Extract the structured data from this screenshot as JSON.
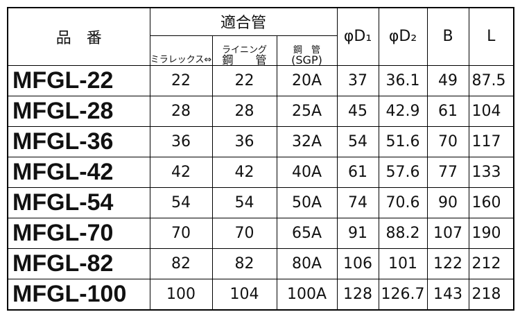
{
  "header": {
    "part_no": "品　番",
    "fit_pipe": "適合管",
    "sub": [
      {
        "lines": [
          "ミラレックス⇔"
        ]
      },
      {
        "lines": [
          "ライニング",
          "鋼　　管"
        ]
      },
      {
        "lines": [
          "鋼　管",
          "(SGP)"
        ]
      }
    ],
    "dims": [
      "φD₁",
      "φD₂",
      "B",
      "L"
    ]
  },
  "table": {
    "rows": [
      [
        "MFGL-22",
        "22",
        "22",
        "20A",
        "37",
        "36.1",
        "49",
        "87.5"
      ],
      [
        "MFGL-28",
        "28",
        "28",
        "25A",
        "45",
        "42.9",
        "61",
        "104"
      ],
      [
        "MFGL-36",
        "36",
        "36",
        "32A",
        "54",
        "51.6",
        "70",
        "117"
      ],
      [
        "MFGL-42",
        "42",
        "42",
        "40A",
        "61",
        "57.6",
        "77",
        "133"
      ],
      [
        "MFGL-54",
        "54",
        "54",
        "50A",
        "74",
        "70.6",
        "90",
        "160"
      ],
      [
        "MFGL-70",
        "70",
        "70",
        "65A",
        "91",
        "88.2",
        "107",
        "190"
      ],
      [
        "MFGL-82",
        "82",
        "82",
        "80A",
        "106",
        "101",
        "122",
        "212"
      ],
      [
        "MFGL-100",
        "100",
        "104",
        "100A",
        "128",
        "126.7",
        "143",
        "218"
      ]
    ]
  }
}
